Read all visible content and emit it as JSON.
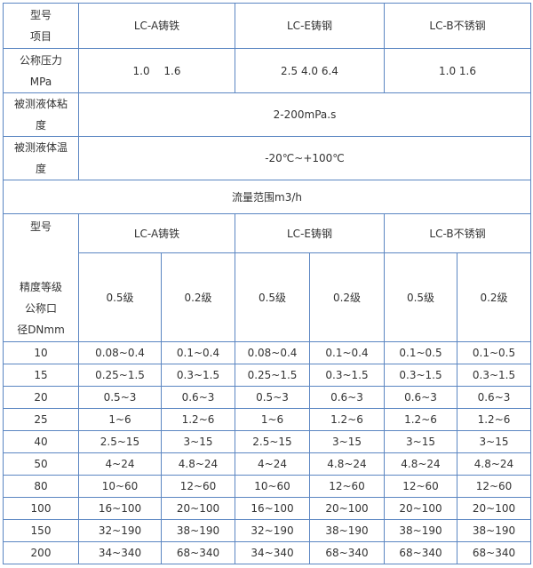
{
  "header": {
    "col0_line1": "型号",
    "col0_line2": "项目",
    "models": [
      "LC-A铸铁",
      "LC-E铸钢",
      "LC-B不锈钢"
    ]
  },
  "pressure": {
    "label_line1": "公称压力",
    "label_line2": "MPa",
    "values": [
      "1.0　 1.6",
      "2.5 4.0 6.4",
      "1.0 1.6"
    ]
  },
  "viscosity": {
    "label_line1": "被测液体粘",
    "label_line2": "度",
    "value": "2-200mPa.s"
  },
  "temperature": {
    "label_line1": "被测液体温",
    "label_line2": "度",
    "value": "-20℃~+100℃"
  },
  "flow_title": "流量范围m3/h",
  "flow_header": {
    "top_label": "型号",
    "bottom_label": [
      "精度等级",
      "公称口",
      "径DNmm"
    ],
    "models": [
      "LC-A铸铁",
      "LC-E铸钢",
      "LC-B不锈钢"
    ],
    "grades": [
      "0.5级",
      "0.2级",
      "0.5级",
      "0.2级",
      "0.5级",
      "0.2级"
    ]
  },
  "rows": [
    {
      "dn": "10",
      "v": [
        "0.08~0.4",
        "0.1~0.4",
        "0.08~0.4",
        "0.1~0.4",
        "0.1~0.5",
        "0.1~0.5"
      ]
    },
    {
      "dn": "15",
      "v": [
        "0.25~1.5",
        "0.3~1.5",
        "0.25~1.5",
        "0.3~1.5",
        "0.3~1.5",
        "0.3~1.5"
      ]
    },
    {
      "dn": "20",
      "v": [
        "0.5~3",
        "0.6~3",
        "0.5~3",
        "0.6~3",
        "0.6~3",
        "0.6~3"
      ]
    },
    {
      "dn": "25",
      "v": [
        "1~6",
        "1.2~6",
        "1~6",
        "1.2~6",
        "1.2~6",
        "1.2~6"
      ]
    },
    {
      "dn": "40",
      "v": [
        "2.5~15",
        "3~15",
        "2.5~15",
        "3~15",
        "3~15",
        "3~15"
      ]
    },
    {
      "dn": "50",
      "v": [
        "4~24",
        "4.8~24",
        "4~24",
        "4.8~24",
        "4.8~24",
        "4.8~24"
      ]
    },
    {
      "dn": "80",
      "v": [
        "10~60",
        "12~60",
        "10~60",
        "12~60",
        "12~60",
        "12~60"
      ]
    },
    {
      "dn": "100",
      "v": [
        "16~100",
        "20~100",
        "16~100",
        "20~100",
        "20~100",
        "20~100"
      ]
    },
    {
      "dn": "150",
      "v": [
        "32~190",
        "38~190",
        "32~190",
        "38~190",
        "38~190",
        "38~190"
      ]
    },
    {
      "dn": "200",
      "v": [
        "34~340",
        "68~340",
        "34~340",
        "68~340",
        "68~340",
        "68~340"
      ]
    }
  ],
  "colors": {
    "border": "#5b86c2",
    "text": "#333333"
  }
}
